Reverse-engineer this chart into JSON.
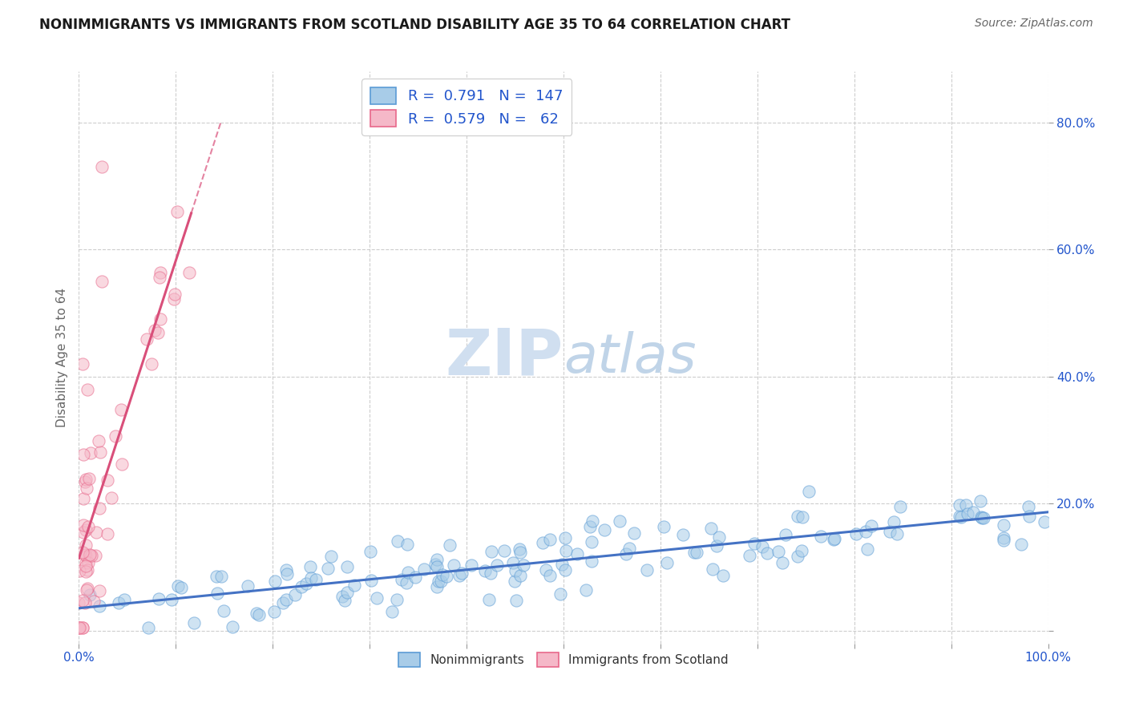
{
  "title": "NONIMMIGRANTS VS IMMIGRANTS FROM SCOTLAND DISABILITY AGE 35 TO 64 CORRELATION CHART",
  "source": "Source: ZipAtlas.com",
  "ylabel": "Disability Age 35 to 64",
  "xlabel": "",
  "watermark_zip": "ZIP",
  "watermark_atlas": "atlas",
  "xlim": [
    0.0,
    1.0
  ],
  "ylim": [
    -0.02,
    0.88
  ],
  "xticks": [
    0.0,
    0.1,
    0.2,
    0.3,
    0.4,
    0.5,
    0.6,
    0.7,
    0.8,
    0.9,
    1.0
  ],
  "yticks_right": [
    0.0,
    0.2,
    0.4,
    0.6,
    0.8
  ],
  "yticklabels_right": [
    "",
    "20.0%",
    "40.0%",
    "60.0%",
    "80.0%"
  ],
  "blue_R": 0.791,
  "blue_N": 147,
  "pink_R": 0.579,
  "pink_N": 62,
  "blue_scatter_color": "#a8cce8",
  "blue_edge_color": "#5b9bd5",
  "pink_scatter_color": "#f5b8c8",
  "pink_edge_color": "#e8678a",
  "blue_trend_color": "#4472c4",
  "pink_trend_color": "#d94f7a",
  "legend_color": "#2255cc",
  "background_color": "#ffffff",
  "grid_color": "#c8c8c8",
  "title_fontsize": 12,
  "source_fontsize": 10,
  "axis_tick_fontsize": 11,
  "watermark_zip_color": "#d0dff0",
  "watermark_atlas_color": "#c0d4e8",
  "watermark_fontsize": 58
}
